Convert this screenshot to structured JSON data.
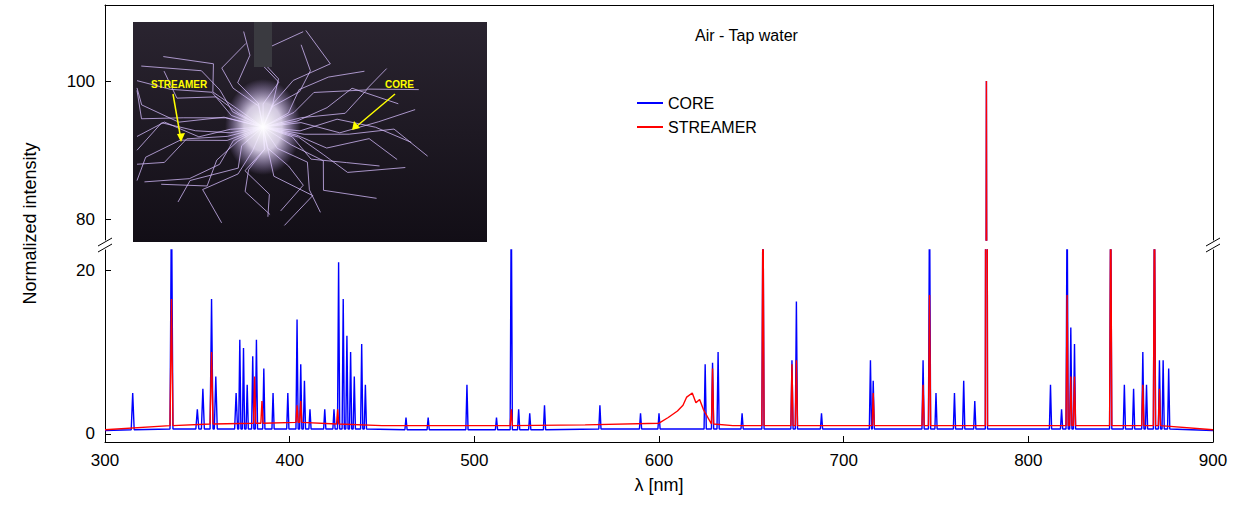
{
  "chart_data": {
    "type": "line",
    "title": "Air - Tap water",
    "x_label": "λ [nm]",
    "y_label": "Normalized intensity",
    "xlim": [
      300,
      900
    ],
    "xticks": [
      300,
      400,
      500,
      600,
      700,
      800,
      900
    ],
    "ylim": [
      -1,
      111
    ],
    "yticks": [
      0,
      20,
      80,
      100
    ],
    "y_break": [
      22.5,
      77
    ],
    "grid": false,
    "legend": "top",
    "annotations": [
      "STREAMER",
      "CORE"
    ],
    "series": [
      {
        "name": "CORE",
        "color": "#0000ff",
        "line_style": "solid",
        "x": [
          300,
          314.2,
          315,
          315.8,
          335.2,
          336,
          336.8,
          349.2,
          350,
          350.8,
          352.2,
          353,
          353.8,
          356.9,
          357.7,
          358.5,
          359.2,
          360,
          360.8,
          370.2,
          371,
          371.8,
          372.4,
          373,
          373.6,
          374.4,
          375,
          375.6,
          376.4,
          377,
          377.6,
          379.4,
          380,
          380.6,
          381.4,
          382,
          382.6,
          385.4,
          386,
          386.6,
          390.4,
          391,
          391.6,
          398.4,
          399,
          399.6,
          403.4,
          404,
          404.6,
          405.4,
          406,
          406.6,
          407.4,
          408,
          408.6,
          410.4,
          411,
          411.6,
          418.4,
          419,
          419.6,
          423.4,
          424,
          424.6,
          425.9,
          426.5,
          427.1,
          428.4,
          429,
          429.6,
          430.4,
          431,
          431.6,
          432.4,
          433,
          433.6,
          434.4,
          435,
          435.6,
          438.4,
          439,
          439.6,
          440.4,
          441,
          441.6,
          462.4,
          463,
          463.6,
          474.4,
          475,
          475.6,
          495.4,
          496,
          496.6,
          511.4,
          512,
          512.6,
          519.4,
          520,
          520.6,
          523.4,
          524,
          524.6,
          529.4,
          530,
          530.6,
          537.4,
          538,
          538.6,
          567.4,
          568,
          568.6,
          589.4,
          590,
          590.6,
          599.4,
          600,
          600.6,
          624.4,
          625,
          625.6,
          628.4,
          629,
          629.6,
          631.4,
          632,
          632.6,
          644.4,
          645,
          645.6,
          655.7,
          656.3,
          656.9,
          671.4,
          672,
          672.6,
          673.8,
          674.4,
          675,
          687.4,
          688,
          688.6,
          713.9,
          714.5,
          715.1,
          715.5,
          716,
          716.6,
          742.4,
          743,
          743.6,
          745.9,
          746.5,
          747.1,
          749.4,
          750,
          750.6,
          759.4,
          760,
          760.6,
          764.4,
          765,
          765.6,
          770.4,
          771,
          771.6,
          776.7,
          777.3,
          777.9,
          811.4,
          812,
          812.6,
          817.4,
          818,
          818.6,
          820.4,
          821,
          821.6,
          822.4,
          823,
          823.6,
          824.4,
          825,
          825.6,
          844,
          844.6,
          845.2,
          851.4,
          852,
          852.6,
          856.4,
          857,
          857.6,
          861.4,
          862,
          862.6,
          863.4,
          864,
          864.6,
          867.7,
          868.3,
          868.9,
          870.4,
          871,
          871.6,
          872.4,
          873,
          873.6,
          875.4,
          876,
          876.6,
          900
        ],
        "values": [
          0.4,
          0.5,
          5,
          0.5,
          0.6,
          30,
          0.6,
          0.6,
          3,
          0.6,
          0.6,
          5.5,
          0.6,
          0.6,
          16.5,
          0.6,
          0.6,
          7,
          0.6,
          0.6,
          5,
          0.6,
          0.6,
          11.5,
          0.6,
          0.6,
          10.5,
          0.6,
          0.6,
          6,
          0.6,
          0.6,
          9.5,
          0.6,
          0.6,
          11.5,
          0.6,
          0.6,
          8,
          0.6,
          0.6,
          5,
          0.6,
          0.6,
          5,
          0.6,
          0.6,
          14,
          0.6,
          0.6,
          8.5,
          0.6,
          0.6,
          6.5,
          0.6,
          0.6,
          3,
          0.6,
          0.6,
          3,
          0.6,
          0.6,
          3,
          0.6,
          0.6,
          21,
          0.6,
          0.6,
          16.5,
          0.6,
          0.6,
          12,
          0.6,
          0.6,
          10,
          0.6,
          0.6,
          7,
          0.6,
          0.6,
          11,
          0.6,
          0.6,
          6,
          0.6,
          0.5,
          2,
          0.5,
          0.5,
          2,
          0.5,
          0.5,
          6,
          0.5,
          0.5,
          2,
          0.5,
          0.5,
          30,
          0.5,
          0.5,
          3,
          0.5,
          0.5,
          2.5,
          0.5,
          0.5,
          3.5,
          0.5,
          0.6,
          3.5,
          0.6,
          0.6,
          2.5,
          0.6,
          0.6,
          2.5,
          0.6,
          0.6,
          8.5,
          0.6,
          0.6,
          8.7,
          0.6,
          0.6,
          10,
          0.6,
          0.6,
          2.5,
          0.6,
          0.6,
          30,
          0.6,
          0.6,
          9,
          0.6,
          0.6,
          16.2,
          0.6,
          0.6,
          2.5,
          0.6,
          0.6,
          9,
          0.6,
          0.6,
          6.5,
          0.6,
          0.6,
          9,
          0.6,
          0.6,
          30,
          0.6,
          0.6,
          5,
          0.6,
          0.6,
          5,
          0.6,
          0.6,
          6.5,
          0.6,
          0.6,
          4,
          0.6,
          0.6,
          100,
          0.6,
          0.6,
          6,
          0.6,
          0.6,
          3,
          0.6,
          0.6,
          30,
          0.6,
          0.6,
          13,
          0.6,
          0.6,
          11,
          0.6,
          0.6,
          30,
          0.6,
          0.6,
          6,
          0.6,
          0.6,
          5.5,
          0.6,
          0.6,
          10,
          0.6,
          0.6,
          6,
          0.6,
          0.6,
          30,
          0.6,
          0.6,
          9,
          0.6,
          0.6,
          9,
          0.6,
          0.6,
          8,
          0.6,
          0.4
        ]
      },
      {
        "name": "STREAMER",
        "color": "#ff0000",
        "line_style": "solid",
        "x": [
          300,
          335.2,
          336,
          336.8,
          356.9,
          357.7,
          358.5,
          380.4,
          381,
          381.6,
          384.4,
          385,
          385.6,
          403.4,
          404,
          404.6,
          405.4,
          406,
          406.6,
          425.4,
          426,
          426.6,
          450,
          519.4,
          520,
          520.6,
          560,
          600,
          605,
          610,
          613,
          615,
          618,
          620,
          622,
          624,
          628.4,
          629,
          629.6,
          640,
          655.7,
          656.3,
          656.9,
          671.4,
          672,
          672.6,
          673.8,
          674.4,
          675,
          715.4,
          716,
          716.6,
          742.4,
          743,
          743.6,
          745.9,
          746.5,
          747.1,
          776.7,
          777.3,
          777.9,
          820.4,
          821,
          821.6,
          822.4,
          823,
          823.6,
          824.4,
          825,
          825.6,
          844,
          844.6,
          845.2,
          861.4,
          862,
          862.6,
          867.7,
          868.3,
          868.9,
          870.4,
          871,
          871.6,
          900
        ],
        "values": [
          0.5,
          1,
          16.5,
          1,
          1.2,
          10,
          1.2,
          1.3,
          7,
          1.3,
          1.3,
          4,
          1.3,
          1.4,
          3.5,
          1.4,
          1.4,
          4,
          1.4,
          1.2,
          3,
          1.2,
          1,
          1,
          3,
          1,
          1.1,
          1.3,
          2,
          2.8,
          3.5,
          4.5,
          5,
          3.8,
          4.2,
          3,
          1.2,
          8,
          1.2,
          1,
          1,
          30,
          1,
          1,
          8.5,
          1,
          1,
          9,
          1,
          1,
          5,
          1,
          1,
          6,
          1,
          1,
          17,
          1,
          1,
          100,
          1,
          1,
          17,
          1,
          1,
          7,
          1,
          1,
          7,
          1,
          1,
          30,
          1,
          1,
          6,
          1,
          1,
          30,
          1,
          1,
          5.5,
          1,
          0.5
        ]
      }
    ]
  }
}
